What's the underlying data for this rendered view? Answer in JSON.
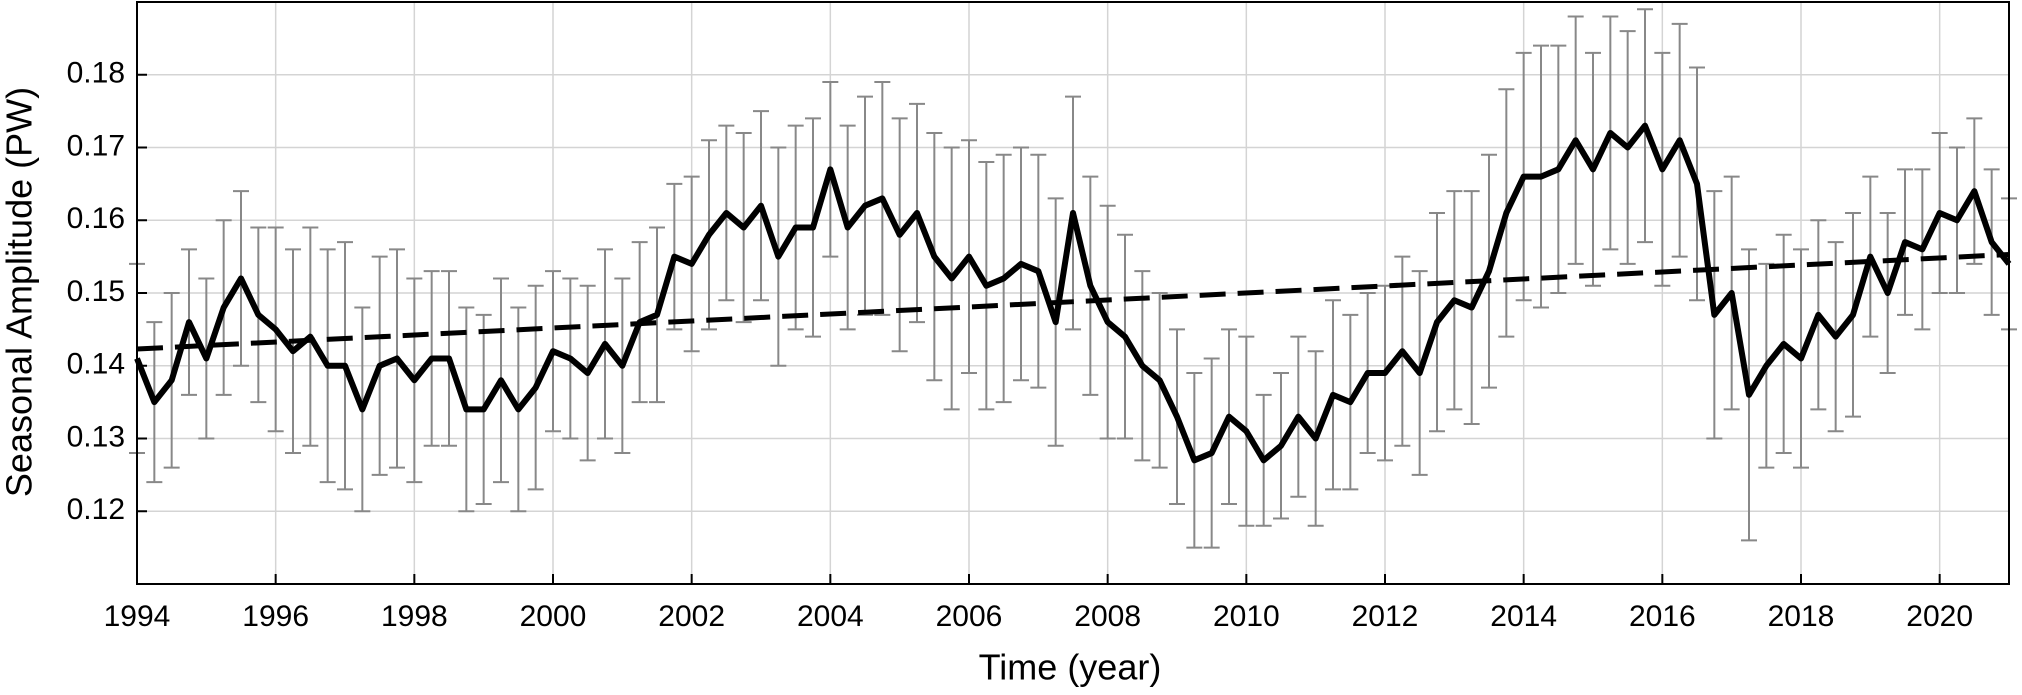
{
  "chart_data": {
    "type": "line",
    "x_label": "Time (year)",
    "y_label": "Seasonal Amplitude (PW)",
    "xlim": [
      1994,
      2021
    ],
    "ylim": [
      0.11,
      0.19
    ],
    "xticks": [
      1994,
      1996,
      1998,
      2000,
      2002,
      2004,
      2006,
      2008,
      2010,
      2012,
      2014,
      2016,
      2018,
      2020
    ],
    "yticks": [
      0.12,
      0.13,
      0.14,
      0.15,
      0.16,
      0.17,
      0.18
    ],
    "grid": true,
    "series": [
      {
        "color": "#000000",
        "error_color": "#888888",
        "x": [
          1994,
          1994.25,
          1994.5,
          1994.75,
          1995,
          1995.25,
          1995.5,
          1995.75,
          1996,
          1996.25,
          1996.5,
          1996.75,
          1997,
          1997.25,
          1997.5,
          1997.75,
          1998,
          1998.25,
          1998.5,
          1998.75,
          1999,
          1999.25,
          1999.5,
          1999.75,
          2000,
          2000.25,
          2000.5,
          2000.75,
          2001,
          2001.25,
          2001.5,
          2001.75,
          2002,
          2002.25,
          2002.5,
          2002.75,
          2003,
          2003.25,
          2003.5,
          2003.75,
          2004,
          2004.25,
          2004.5,
          2004.75,
          2005,
          2005.25,
          2005.5,
          2005.75,
          2006,
          2006.25,
          2006.5,
          2006.75,
          2007,
          2007.25,
          2007.5,
          2007.75,
          2008,
          2008.25,
          2008.5,
          2008.75,
          2009,
          2009.25,
          2009.5,
          2009.75,
          2010,
          2010.25,
          2010.5,
          2010.75,
          2011,
          2011.25,
          2011.5,
          2011.75,
          2012,
          2012.25,
          2012.5,
          2012.75,
          2013,
          2013.25,
          2013.5,
          2013.75,
          2014,
          2014.25,
          2014.5,
          2014.75,
          2015,
          2015.25,
          2015.5,
          2015.75,
          2016,
          2016.25,
          2016.5,
          2016.75,
          2017,
          2017.25,
          2017.5,
          2017.75,
          2018,
          2018.25,
          2018.5,
          2018.75,
          2019,
          2019.25,
          2019.5,
          2019.75,
          2020,
          2020.25,
          2020.5,
          2020.75,
          2021
        ],
        "values": [
          0.141,
          0.135,
          0.138,
          0.146,
          0.141,
          0.148,
          0.152,
          0.147,
          0.145,
          0.142,
          0.144,
          0.14,
          0.14,
          0.134,
          0.14,
          0.141,
          0.138,
          0.141,
          0.141,
          0.134,
          0.134,
          0.138,
          0.134,
          0.137,
          0.142,
          0.141,
          0.139,
          0.143,
          0.14,
          0.146,
          0.147,
          0.155,
          0.154,
          0.158,
          0.161,
          0.159,
          0.162,
          0.155,
          0.159,
          0.159,
          0.167,
          0.159,
          0.162,
          0.163,
          0.158,
          0.161,
          0.155,
          0.152,
          0.155,
          0.151,
          0.152,
          0.154,
          0.153,
          0.146,
          0.161,
          0.151,
          0.146,
          0.144,
          0.14,
          0.138,
          0.133,
          0.127,
          0.128,
          0.133,
          0.131,
          0.127,
          0.129,
          0.133,
          0.13,
          0.136,
          0.135,
          0.139,
          0.139,
          0.142,
          0.139,
          0.146,
          0.149,
          0.148,
          0.153,
          0.161,
          0.166,
          0.166,
          0.167,
          0.171,
          0.167,
          0.172,
          0.17,
          0.173,
          0.167,
          0.171,
          0.165,
          0.147,
          0.15,
          0.136,
          0.14,
          0.143,
          0.141,
          0.147,
          0.144,
          0.147,
          0.155,
          0.15,
          0.157,
          0.156,
          0.161,
          0.16,
          0.164,
          0.157,
          0.154
        ],
        "errors": [
          0.013,
          0.011,
          0.012,
          0.01,
          0.011,
          0.012,
          0.012,
          0.012,
          0.014,
          0.014,
          0.015,
          0.016,
          0.017,
          0.014,
          0.015,
          0.015,
          0.014,
          0.012,
          0.012,
          0.014,
          0.013,
          0.014,
          0.014,
          0.014,
          0.011,
          0.011,
          0.012,
          0.013,
          0.012,
          0.011,
          0.012,
          0.01,
          0.012,
          0.013,
          0.012,
          0.013,
          0.013,
          0.015,
          0.014,
          0.015,
          0.012,
          0.014,
          0.015,
          0.016,
          0.016,
          0.015,
          0.017,
          0.018,
          0.016,
          0.017,
          0.017,
          0.016,
          0.016,
          0.017,
          0.016,
          0.015,
          0.016,
          0.014,
          0.013,
          0.012,
          0.012,
          0.012,
          0.013,
          0.012,
          0.013,
          0.009,
          0.01,
          0.011,
          0.012,
          0.013,
          0.012,
          0.011,
          0.012,
          0.013,
          0.014,
          0.015,
          0.015,
          0.016,
          0.016,
          0.017,
          0.017,
          0.018,
          0.017,
          0.017,
          0.016,
          0.016,
          0.016,
          0.016,
          0.016,
          0.016,
          0.016,
          0.017,
          0.016,
          0.02,
          0.014,
          0.015,
          0.015,
          0.013,
          0.013,
          0.014,
          0.011,
          0.011,
          0.01,
          0.011,
          0.011,
          0.01,
          0.01,
          0.01,
          0.009
        ]
      },
      {
        "color": "#000000",
        "dashed": true,
        "x": [
          1994,
          2021
        ],
        "values": [
          0.1423,
          0.1553
        ]
      }
    ]
  }
}
